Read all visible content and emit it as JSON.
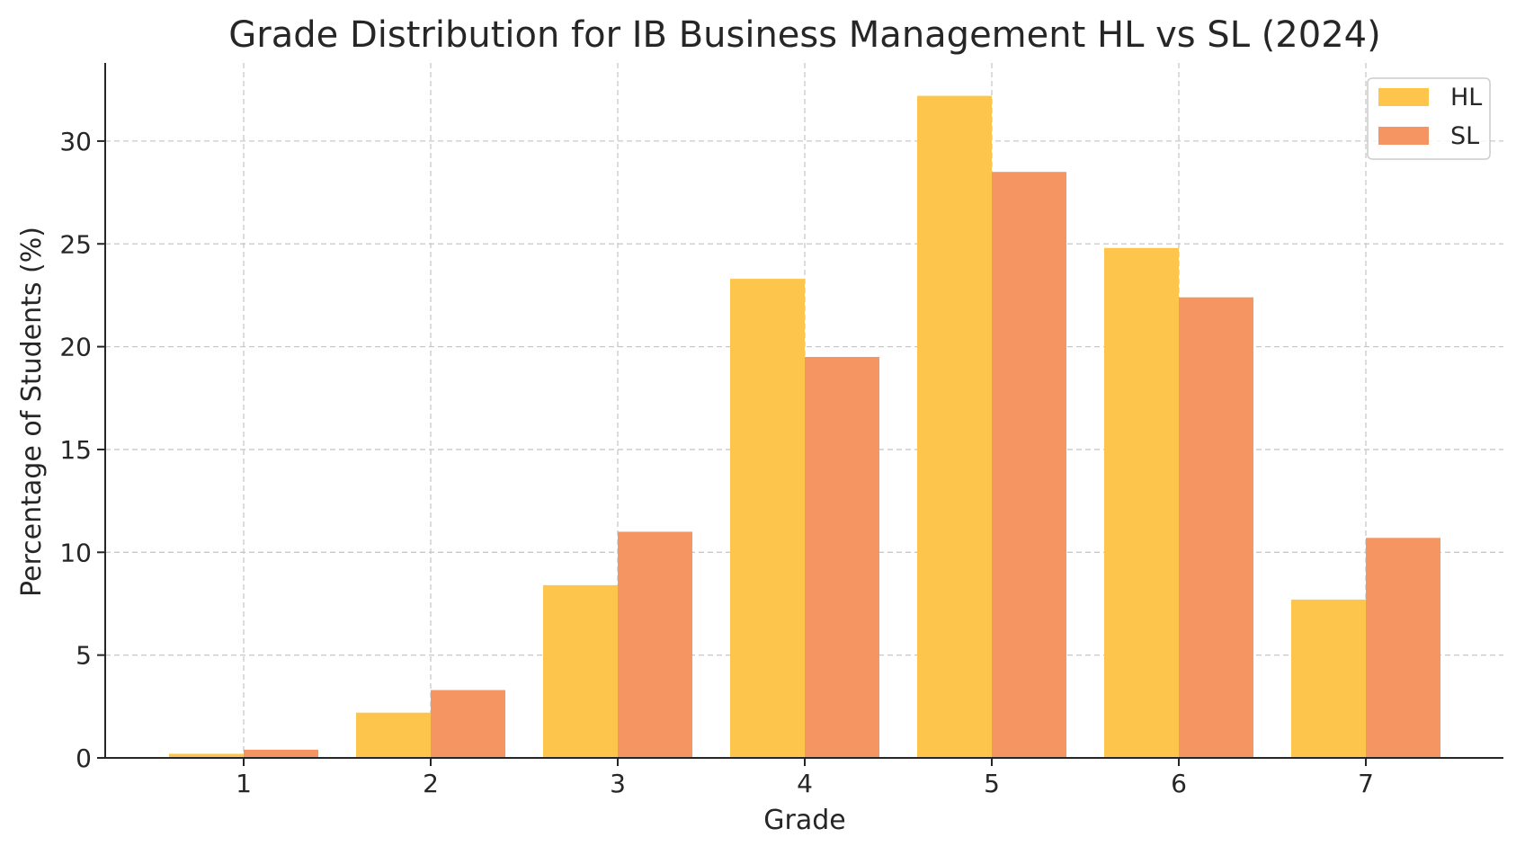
{
  "chart_data": {
    "type": "bar",
    "title": "Grade Distribution for IB Business Management HL vs SL (2024)",
    "xlabel": "Grade",
    "ylabel": "Percentage of Students (%)",
    "categories": [
      "1",
      "2",
      "3",
      "4",
      "5",
      "6",
      "7"
    ],
    "series": [
      {
        "name": "HL",
        "color": "#fdc54c",
        "values": [
          0.2,
          2.2,
          8.4,
          23.3,
          32.2,
          24.8,
          7.7
        ]
      },
      {
        "name": "SL",
        "color": "#f59562",
        "values": [
          0.4,
          3.3,
          11.0,
          19.5,
          28.5,
          22.4,
          10.7
        ]
      }
    ],
    "ylim": [
      0,
      33.8
    ],
    "yticks": [
      0,
      5,
      10,
      15,
      20,
      25,
      30
    ],
    "grid": true,
    "legend_position": "top-right"
  }
}
